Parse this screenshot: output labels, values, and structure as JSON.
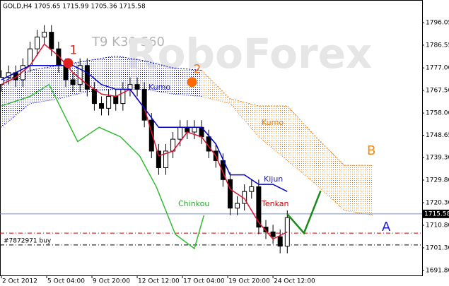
{
  "chart_data": {
    "type": "candlestick",
    "title": "GOLD,H4  1705.65 1715.99 1705.36 1715.58",
    "xlim": [
      -0.6,
      176.6
    ],
    "xticks": [
      {
        "value": 0,
        "label": "2 Oct 2012"
      },
      {
        "value": 19,
        "label": "5 Oct 04:00"
      },
      {
        "value": 38,
        "label": "9 Oct 20:00"
      },
      {
        "value": 57,
        "label": "12 Oct 12:00"
      },
      {
        "value": 76,
        "label": "17 Oct 04:00"
      },
      {
        "value": 95,
        "label": "19 Oct 20:00"
      },
      {
        "value": 114,
        "label": "24 Oct 12:00"
      }
    ],
    "ylim": [
      1689.7,
      1805.55
    ],
    "yticks": [
      {
        "value": 1691.8,
        "label": "1691.80"
      },
      {
        "value": 1701.3,
        "label": "1701.30"
      },
      {
        "value": 1710.8,
        "label": "1710.80"
      },
      {
        "value": 1720.3,
        "label": "1720.30"
      },
      {
        "value": 1729.8,
        "label": "1729.80"
      },
      {
        "value": 1739.3,
        "label": "1739.30"
      },
      1748.65,
      {
        "value": 1758,
        "label": "1758.00"
      },
      {
        "value": 1767.5,
        "label": "1767.50"
      },
      {
        "value": 1777,
        "label": "1777.00"
      },
      1786.55,
      1796.05
    ],
    "x": [
      0,
      3,
      6,
      9,
      12,
      15,
      18,
      21,
      24,
      27,
      30,
      33,
      36,
      39,
      42,
      45,
      48,
      51,
      54,
      57,
      60,
      63,
      66,
      69,
      72,
      75,
      78,
      81,
      84,
      87,
      90,
      93,
      96,
      99,
      102,
      105,
      108,
      111,
      114,
      117,
      120
    ],
    "open": [
      1770,
      1773,
      1775,
      1772,
      1778,
      1785,
      1790,
      1792,
      1785,
      1778,
      1772,
      1770,
      1778,
      1768,
      1762,
      1760,
      1765,
      1762,
      1768,
      1770,
      1768,
      1755,
      1742,
      1735,
      1742,
      1747,
      1752,
      1750,
      1752,
      1748,
      1742,
      1738,
      1730,
      1718,
      1720,
      1725,
      1727,
      1710,
      1708,
      1706,
      1702
    ],
    "high": [
      1776,
      1778,
      1778,
      1781,
      1788,
      1793,
      1795,
      1795,
      1788,
      1781,
      1775,
      1781,
      1781,
      1771,
      1765,
      1768,
      1768,
      1771,
      1773,
      1773,
      1771,
      1758,
      1745,
      1745,
      1750,
      1755,
      1755,
      1755,
      1755,
      1751,
      1745,
      1741,
      1733,
      1723,
      1728,
      1730,
      1730,
      1713,
      1711,
      1709,
      1717
    ],
    "low": [
      1767,
      1770,
      1769,
      1769,
      1775,
      1782,
      1787,
      1782,
      1775,
      1769,
      1767,
      1767,
      1765,
      1759,
      1757,
      1757,
      1759,
      1759,
      1765,
      1765,
      1752,
      1739,
      1732,
      1732,
      1739,
      1744,
      1747,
      1747,
      1745,
      1739,
      1735,
      1727,
      1715,
      1715,
      1717,
      1722,
      1707,
      1705,
      1703,
      1699,
      1699
    ],
    "close": [
      1773,
      1775,
      1772,
      1778,
      1785,
      1790,
      1792,
      1785,
      1778,
      1772,
      1770,
      1778,
      1768,
      1762,
      1760,
      1765,
      1762,
      1768,
      1770,
      1768,
      1755,
      1742,
      1735,
      1742,
      1747,
      1752,
      1750,
      1752,
      1748,
      1742,
      1738,
      1730,
      1718,
      1720,
      1725,
      1727,
      1710,
      1708,
      1706,
      1702,
      1714
    ],
    "up_color": "#ffffff",
    "down_color": "#000000",
    "lines": [
      {
        "color": "#dd1030",
        "x": [
          0,
          6,
          12,
          18,
          24,
          30,
          36,
          42,
          48,
          54,
          60,
          66,
          72,
          78,
          84,
          90,
          96,
          102,
          108,
          114,
          120
        ],
        "values": [
          1770,
          1773,
          1778,
          1787,
          1782,
          1775,
          1770,
          1766,
          1765,
          1768,
          1760,
          1740,
          1742,
          1750,
          1748,
          1740,
          1726,
          1722,
          1712,
          1705,
          1708
        ]
      },
      {
        "color": "#0000cc",
        "x": [
          0,
          6,
          12,
          18,
          24,
          30,
          36,
          42,
          48,
          54,
          60,
          66,
          72,
          78,
          84,
          90,
          96,
          102,
          108,
          114,
          120
        ],
        "values": [
          1772,
          1775,
          1778,
          1778,
          1778,
          1778,
          1775,
          1770,
          1768,
          1768,
          1760,
          1752,
          1752,
          1752,
          1752,
          1745,
          1732,
          1732,
          1728,
          1728,
          1725
        ]
      },
      {
        "color": "#33bb33",
        "x": [
          0,
          12,
          20,
          26,
          32,
          41,
          50,
          58,
          65,
          73,
          81,
          85
        ],
        "values": [
          1761,
          1765,
          1770,
          1758,
          1746,
          1752,
          1748,
          1740,
          1727,
          1707,
          1701,
          1715
        ]
      }
    ],
    "clouds": [
      {
        "color": "#0000cc",
        "x": [
          0,
          12,
          24,
          36,
          48,
          60,
          72,
          84
        ],
        "upper": [
          1771,
          1776,
          1778,
          1780,
          1782,
          1780,
          1777,
          1776
        ],
        "lower": [
          1752,
          1762,
          1764,
          1767,
          1768,
          1768,
          1766,
          1765
        ]
      },
      {
        "color": "#f07a10",
        "x": [
          84,
          96,
          108,
          120,
          132,
          144,
          156
        ],
        "upper": [
          1776,
          1764,
          1761,
          1761,
          1748,
          1736,
          1736
        ],
        "lower": [
          1765,
          1762,
          1748,
          1738,
          1728,
          1717,
          1715
        ]
      }
    ],
    "current_price": 1715.58,
    "order_lines": [
      {
        "value": 1707.5,
        "color": "#cc0000"
      },
      {
        "value": 1702.5,
        "color": "#000000",
        "label": "#7872971 buy"
      }
    ],
    "forecast": {
      "color": "#1a8a1a",
      "x": [
        120,
        127,
        134
      ],
      "values": [
        1715.5,
        1707.5,
        1725.3
      ]
    },
    "markers": [
      {
        "label": "1",
        "x": 28,
        "value": 1779,
        "color": "#e02020"
      },
      {
        "label": "2",
        "x": 80,
        "value": 1771,
        "color": "#ff6a00"
      }
    ],
    "annotations": [
      {
        "text": "T9 K30 S60",
        "color": "#b4b4b4"
      },
      {
        "text": "RoboForex",
        "color": "#e6e6e6"
      },
      {
        "text": "Kumo",
        "color": "#1a1acc"
      },
      {
        "text": "Kumo",
        "color": "#e07a10"
      },
      {
        "text": "B",
        "color": "#f08a10"
      },
      {
        "text": "Kijun",
        "color": "#1a1aa0"
      },
      {
        "text": "Tenkan",
        "color": "#cc0000"
      },
      {
        "text": "Chinkou",
        "color": "#22aa22"
      },
      {
        "text": "A",
        "color": "#1a1acc"
      }
    ]
  }
}
